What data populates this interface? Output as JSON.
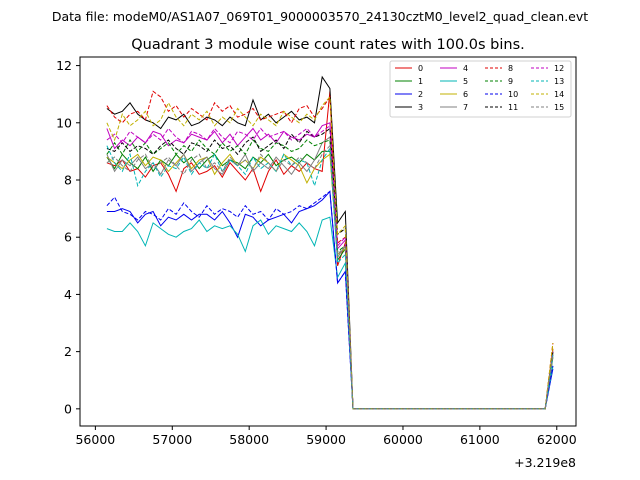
{
  "figure": {
    "supertitle": "Data file: modeM0/AS1A07_069T01_9000003570_24130cztM0_level2_quad_clean.evt"
  },
  "chart_data": {
    "type": "line",
    "title": "Quadrant 3 module wise count rates with 100.0s bins.",
    "xlabel": "",
    "ylabel": "",
    "x_offset_label": "+3.219e8",
    "xlim": [
      55800,
      62250
    ],
    "ylim": [
      -0.6,
      12.3
    ],
    "xticks": [
      56000,
      57000,
      58000,
      59000,
      60000,
      61000,
      62000
    ],
    "yticks": [
      0,
      2,
      4,
      6,
      8,
      10,
      12
    ],
    "grid": false,
    "legend": {
      "placement": "top-right",
      "columns": 4
    },
    "x": [
      56150,
      56250,
      56350,
      56450,
      56550,
      56650,
      56750,
      56850,
      56950,
      57050,
      57150,
      57250,
      57350,
      57450,
      57550,
      57650,
      57750,
      57850,
      57950,
      58050,
      58150,
      58250,
      58350,
      58450,
      58550,
      58650,
      58750,
      58850,
      58950,
      59050,
      59150,
      59250,
      59350,
      59450,
      59550,
      59650,
      59750,
      59850,
      59950,
      60050,
      60150,
      60250,
      60350,
      60450,
      60550,
      60650,
      60750,
      60850,
      60950,
      61050,
      61150,
      61250,
      61350,
      61450,
      61550,
      61650,
      61750,
      61850,
      61950
    ],
    "series": [
      {
        "name": "0",
        "color": "#e00000",
        "dash": "solid",
        "values": [
          8.6,
          8.5,
          8.7,
          8.3,
          8.4,
          8.1,
          8.5,
          8.6,
          8.2,
          7.6,
          8.4,
          8.6,
          8.2,
          8.3,
          8.5,
          8.1,
          8.6,
          8.3,
          8.0,
          8.4,
          7.6,
          8.3,
          8.7,
          8.2,
          8.5,
          8.3,
          8.6,
          8.4,
          8.3,
          11.1,
          5.0,
          5.8,
          0,
          0,
          0,
          0,
          0,
          0,
          0,
          0,
          0,
          0,
          0,
          0,
          0,
          0,
          0,
          0,
          0,
          0,
          0,
          0,
          0,
          0,
          0,
          0,
          0,
          0,
          2.1
        ]
      },
      {
        "name": "1",
        "color": "#008000",
        "dash": "solid",
        "values": [
          8.8,
          8.4,
          8.9,
          8.6,
          8.4,
          8.8,
          8.3,
          8.7,
          8.5,
          8.9,
          8.6,
          8.8,
          8.4,
          8.7,
          8.9,
          8.5,
          8.7,
          8.6,
          8.4,
          8.8,
          8.6,
          8.9,
          8.5,
          8.7,
          8.8,
          8.6,
          8.9,
          8.7,
          9.0,
          9.0,
          5.2,
          5.6,
          0,
          0,
          0,
          0,
          0,
          0,
          0,
          0,
          0,
          0,
          0,
          0,
          0,
          0,
          0,
          0,
          0,
          0,
          0,
          0,
          0,
          0,
          0,
          0,
          0,
          0,
          1.8
        ]
      },
      {
        "name": "2",
        "color": "#0000ee",
        "dash": "solid",
        "values": [
          6.9,
          6.9,
          7.0,
          6.9,
          6.5,
          6.8,
          6.9,
          6.4,
          6.7,
          6.6,
          6.8,
          6.6,
          6.8,
          6.8,
          6.6,
          6.9,
          6.5,
          6.0,
          6.8,
          6.7,
          6.4,
          6.6,
          6.7,
          6.8,
          6.5,
          6.9,
          7.0,
          7.1,
          7.3,
          7.6,
          4.4,
          4.8,
          0,
          0,
          0,
          0,
          0,
          0,
          0,
          0,
          0,
          0,
          0,
          0,
          0,
          0,
          0,
          0,
          0,
          0,
          0,
          0,
          0,
          0,
          0,
          0,
          0,
          0,
          1.4
        ]
      },
      {
        "name": "3",
        "color": "#000000",
        "dash": "solid",
        "values": [
          10.5,
          10.3,
          10.4,
          10.7,
          10.3,
          10.1,
          10.0,
          9.8,
          10.2,
          10.1,
          10.3,
          9.9,
          10.0,
          10.2,
          10.1,
          9.9,
          10.2,
          10.0,
          9.9,
          10.8,
          10.1,
          10.3,
          10.0,
          10.2,
          10.4,
          10.1,
          10.2,
          10.0,
          11.6,
          11.2,
          6.5,
          6.9,
          0,
          0,
          0,
          0,
          0,
          0,
          0,
          0,
          0,
          0,
          0,
          0,
          0,
          0,
          0,
          0,
          0,
          0,
          0,
          0,
          0,
          0,
          0,
          0,
          0,
          0,
          2.0
        ]
      },
      {
        "name": "4",
        "color": "#c000c0",
        "dash": "solid",
        "values": [
          9.8,
          9.1,
          9.4,
          9.2,
          9.5,
          9.3,
          9.7,
          9.6,
          9.2,
          9.4,
          9.3,
          9.6,
          9.5,
          9.4,
          9.7,
          9.3,
          9.6,
          9.2,
          9.5,
          9.8,
          9.4,
          9.6,
          9.3,
          9.7,
          9.5,
          9.4,
          9.6,
          9.5,
          9.9,
          10.0,
          5.6,
          5.9,
          0,
          0,
          0,
          0,
          0,
          0,
          0,
          0,
          0,
          0,
          0,
          0,
          0,
          0,
          0,
          0,
          0,
          0,
          0,
          0,
          0,
          0,
          0,
          0,
          0,
          0,
          1.9
        ]
      },
      {
        "name": "5",
        "color": "#00b5b5",
        "dash": "solid",
        "values": [
          6.3,
          6.2,
          6.2,
          6.5,
          6.2,
          5.7,
          6.5,
          6.3,
          6.1,
          6.0,
          6.2,
          6.3,
          6.6,
          6.2,
          6.4,
          6.3,
          6.4,
          6.1,
          5.5,
          6.4,
          6.6,
          6.1,
          6.4,
          6.3,
          6.2,
          6.5,
          6.2,
          5.7,
          6.6,
          6.7,
          4.6,
          5.1,
          0,
          0,
          0,
          0,
          0,
          0,
          0,
          0,
          0,
          0,
          0,
          0,
          0,
          0,
          0,
          0,
          0,
          0,
          0,
          0,
          0,
          0,
          0,
          0,
          0,
          0,
          1.5
        ]
      },
      {
        "name": "6",
        "color": "#c0b000",
        "dash": "solid",
        "values": [
          8.8,
          8.6,
          8.4,
          8.7,
          8.9,
          8.5,
          8.8,
          8.7,
          8.3,
          8.6,
          8.9,
          8.4,
          8.7,
          8.8,
          8.2,
          8.6,
          8.9,
          8.5,
          8.7,
          8.4,
          8.8,
          8.6,
          8.3,
          8.9,
          8.7,
          8.5,
          7.9,
          8.4,
          8.7,
          8.9,
          5.4,
          5.6,
          0,
          0,
          0,
          0,
          0,
          0,
          0,
          0,
          0,
          0,
          0,
          0,
          0,
          0,
          0,
          0,
          0,
          0,
          0,
          0,
          0,
          0,
          0,
          0,
          0,
          0,
          2.1
        ]
      },
      {
        "name": "7",
        "color": "#808080",
        "dash": "solid",
        "values": [
          8.9,
          8.3,
          8.7,
          8.5,
          8.8,
          8.4,
          8.6,
          8.2,
          8.7,
          8.5,
          8.9,
          8.3,
          8.6,
          8.8,
          8.4,
          8.2,
          8.7,
          8.5,
          8.9,
          8.3,
          8.6,
          8.4,
          8.8,
          8.5,
          8.2,
          8.6,
          8.3,
          8.7,
          9.3,
          9.5,
          5.3,
          5.7,
          0,
          0,
          0,
          0,
          0,
          0,
          0,
          0,
          0,
          0,
          0,
          0,
          0,
          0,
          0,
          0,
          0,
          0,
          0,
          0,
          0,
          0,
          0,
          0,
          0,
          0,
          1.9
        ]
      },
      {
        "name": "8",
        "color": "#e00000",
        "dash": "dashed",
        "values": [
          10.6,
          10.2,
          10.0,
          10.3,
          10.4,
          10.1,
          11.1,
          10.9,
          10.4,
          10.6,
          10.2,
          10.5,
          10.3,
          10.1,
          10.7,
          10.4,
          10.6,
          10.2,
          10.3,
          10.5,
          10.1,
          10.2,
          10.3,
          10.4,
          10.0,
          10.5,
          10.6,
          10.2,
          10.5,
          10.9,
          5.8,
          6.0,
          0,
          0,
          0,
          0,
          0,
          0,
          0,
          0,
          0,
          0,
          0,
          0,
          0,
          0,
          0,
          0,
          0,
          0,
          0,
          0,
          0,
          0,
          0,
          0,
          0,
          0,
          2.3
        ]
      },
      {
        "name": "9",
        "color": "#008000",
        "dash": "dashed",
        "values": [
          8.9,
          9.3,
          8.9,
          9.4,
          9.0,
          9.3,
          8.9,
          9.1,
          9.3,
          8.9,
          9.2,
          9.0,
          9.4,
          9.1,
          8.9,
          9.3,
          9.0,
          9.2,
          8.9,
          9.4,
          9.1,
          9.0,
          9.3,
          9.2,
          9.0,
          9.1,
          9.4,
          9.2,
          9.3,
          9.4,
          5.5,
          5.7,
          0,
          0,
          0,
          0,
          0,
          0,
          0,
          0,
          0,
          0,
          0,
          0,
          0,
          0,
          0,
          0,
          0,
          0,
          0,
          0,
          0,
          0,
          0,
          0,
          0,
          0,
          2.0
        ]
      },
      {
        "name": "10",
        "color": "#0000ee",
        "dash": "dashed",
        "values": [
          7.1,
          7.4,
          6.9,
          6.8,
          6.6,
          6.9,
          6.8,
          6.6,
          7.0,
          6.8,
          7.2,
          6.9,
          6.7,
          7.1,
          6.8,
          7.0,
          6.9,
          6.7,
          7.1,
          6.8,
          6.9,
          6.6,
          7.0,
          6.8,
          6.9,
          7.1,
          7.0,
          7.2,
          7.4,
          7.6,
          4.4,
          4.8,
          0,
          0,
          0,
          0,
          0,
          0,
          0,
          0,
          0,
          0,
          0,
          0,
          0,
          0,
          0,
          0,
          0,
          0,
          0,
          0,
          0,
          0,
          0,
          0,
          0,
          0,
          1.5
        ]
      },
      {
        "name": "11",
        "color": "#000000",
        "dash": "dashed",
        "values": [
          9.1,
          9.0,
          9.3,
          9.0,
          9.2,
          9.1,
          8.9,
          9.2,
          9.4,
          9.1,
          8.9,
          9.3,
          9.2,
          9.0,
          9.4,
          9.1,
          9.2,
          8.9,
          9.3,
          9.5,
          9.0,
          9.2,
          9.4,
          9.1,
          9.6,
          9.3,
          9.7,
          9.5,
          9.6,
          9.8,
          6.1,
          6.3,
          0,
          0,
          0,
          0,
          0,
          0,
          0,
          0,
          0,
          0,
          0,
          0,
          0,
          0,
          0,
          0,
          0,
          0,
          0,
          0,
          0,
          0,
          0,
          0,
          0,
          0,
          2.0
        ]
      },
      {
        "name": "12",
        "color": "#c000c0",
        "dash": "dashed",
        "values": [
          9.4,
          9.6,
          9.3,
          9.7,
          9.5,
          9.3,
          9.6,
          9.4,
          9.8,
          9.5,
          9.3,
          9.7,
          9.6,
          9.4,
          9.8,
          9.5,
          9.3,
          9.7,
          9.6,
          9.4,
          9.8,
          9.5,
          9.6,
          9.7,
          9.4,
          9.6,
          9.8,
          9.5,
          9.7,
          9.9,
          5.7,
          6.0,
          0,
          0,
          0,
          0,
          0,
          0,
          0,
          0,
          0,
          0,
          0,
          0,
          0,
          0,
          0,
          0,
          0,
          0,
          0,
          0,
          0,
          0,
          0,
          0,
          0,
          0,
          2.0
        ]
      },
      {
        "name": "13",
        "color": "#00b5b5",
        "dash": "dashed",
        "values": [
          9.2,
          8.6,
          8.3,
          8.9,
          7.8,
          8.3,
          8.6,
          8.1,
          8.5,
          8.4,
          8.8,
          8.2,
          8.6,
          8.4,
          8.9,
          8.3,
          8.7,
          8.5,
          8.2,
          8.8,
          8.4,
          8.6,
          8.3,
          8.9,
          8.5,
          8.7,
          8.6,
          7.8,
          8.7,
          9.1,
          5.1,
          5.4,
          0,
          0,
          0,
          0,
          0,
          0,
          0,
          0,
          0,
          0,
          0,
          0,
          0,
          0,
          0,
          0,
          0,
          0,
          0,
          0,
          0,
          0,
          0,
          0,
          0,
          0,
          1.9
        ]
      },
      {
        "name": "14",
        "color": "#c0b000",
        "dash": "dashed",
        "values": [
          10.0,
          9.4,
          10.3,
          9.9,
          10.1,
          10.4,
          9.9,
          10.1,
          10.7,
          10.2,
          9.9,
          10.3,
          10.1,
          10.4,
          9.9,
          10.2,
          10.0,
          10.5,
          10.2,
          9.9,
          10.3,
          10.1,
          9.9,
          10.4,
          10.2,
          10.0,
          10.3,
          10.1,
          10.6,
          10.9,
          6.1,
          6.4,
          0,
          0,
          0,
          0,
          0,
          0,
          0,
          0,
          0,
          0,
          0,
          0,
          0,
          0,
          0,
          0,
          0,
          0,
          0,
          0,
          0,
          0,
          0,
          0,
          0,
          0,
          2.3
        ]
      },
      {
        "name": "15",
        "color": "#808080",
        "dash": "dashed",
        "values": [
          8.6,
          8.8,
          8.5,
          8.3,
          8.7,
          8.9,
          8.4,
          8.6,
          8.8,
          8.5,
          8.2,
          8.7,
          8.9,
          8.4,
          8.6,
          8.3,
          8.8,
          8.5,
          8.7,
          8.4,
          8.9,
          8.6,
          8.3,
          8.7,
          8.5,
          8.8,
          8.6,
          8.4,
          8.9,
          9.2,
          5.4,
          5.7,
          0,
          0,
          0,
          0,
          0,
          0,
          0,
          0,
          0,
          0,
          0,
          0,
          0,
          0,
          0,
          0,
          0,
          0,
          0,
          0,
          0,
          0,
          0,
          0,
          0,
          0,
          1.9
        ]
      }
    ]
  }
}
